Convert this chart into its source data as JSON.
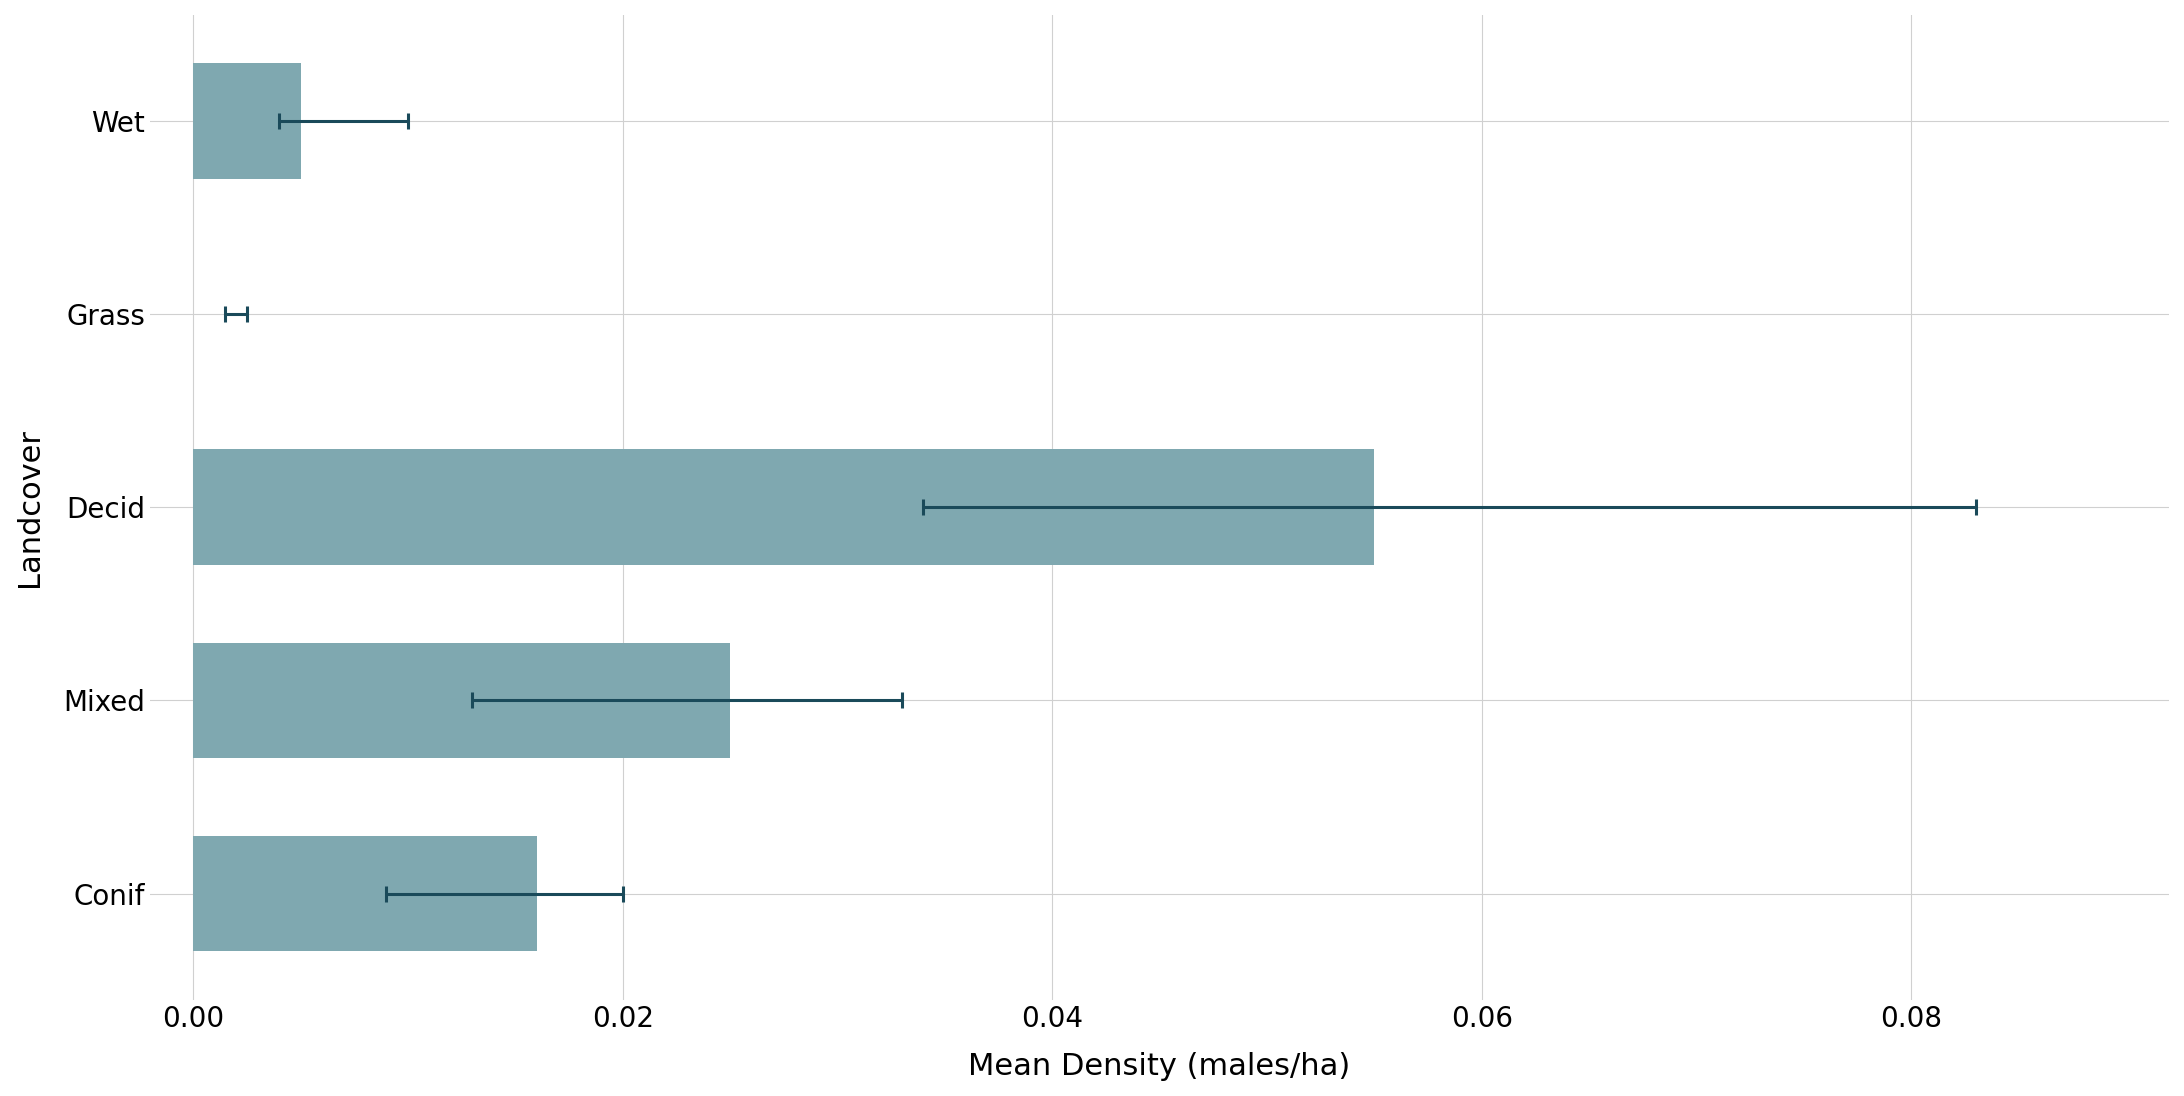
{
  "categories": [
    "Conif",
    "Mixed",
    "Decid",
    "Grass",
    "Wet"
  ],
  "bar_values": [
    0.016,
    0.025,
    0.055,
    0.0,
    0.005
  ],
  "error_centers": [
    0.013,
    0.019,
    0.043,
    0.002,
    0.007
  ],
  "error_lower": [
    0.004,
    0.006,
    0.009,
    0.0005,
    0.003
  ],
  "error_upper": [
    0.007,
    0.014,
    0.04,
    0.0005,
    0.003
  ],
  "bar_color": "#7fa8b0",
  "error_color": "#1a4a5a",
  "xlabel": "Mean Density (males/ha)",
  "ylabel": "Landcover",
  "xlim": [
    -0.002,
    0.092
  ],
  "xticks": [
    0.0,
    0.02,
    0.04,
    0.06,
    0.08
  ],
  "background_color": "#ffffff",
  "grid_color": "#d0d0d0",
  "bar_height": 0.6,
  "font_size": 20,
  "label_font_size": 22
}
